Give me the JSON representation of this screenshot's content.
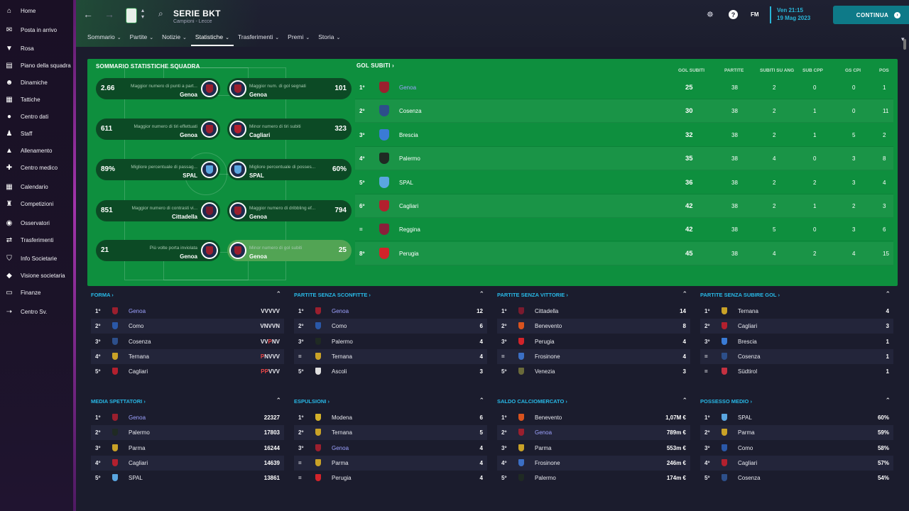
{
  "sidebar": {
    "items": [
      {
        "label": "Home",
        "icon": "home-icon"
      },
      {
        "label": "Posta in arrivo",
        "icon": "inbox-icon"
      },
      {
        "label": "Rosa",
        "icon": "shirt-icon"
      },
      {
        "label": "Piano della squadra",
        "icon": "clipboard-icon"
      },
      {
        "label": "Dinamiche",
        "icon": "people-icon"
      },
      {
        "label": "Tattiche",
        "icon": "tactics-icon"
      },
      {
        "label": "Centro dati",
        "icon": "data-icon"
      },
      {
        "label": "Staff",
        "icon": "staff-icon"
      },
      {
        "label": "Allenamento",
        "icon": "training-icon"
      },
      {
        "label": "Centro medico",
        "icon": "medical-icon"
      },
      {
        "label": "Calendario",
        "icon": "calendar-icon"
      },
      {
        "label": "Competizioni",
        "icon": "trophy-icon"
      },
      {
        "label": "Osservatori",
        "icon": "scout-icon"
      },
      {
        "label": "Trasferimenti",
        "icon": "transfer-icon"
      },
      {
        "label": "Info Societarie",
        "icon": "shield-icon"
      },
      {
        "label": "Visione societaria",
        "icon": "vision-icon"
      },
      {
        "label": "Finanze",
        "icon": "finance-icon"
      },
      {
        "label": "Centro Sv.",
        "icon": "development-icon"
      }
    ]
  },
  "header": {
    "title": "SERIE BKT",
    "subtitle": "Campioni - Lecce",
    "date_line1": "Ven 21:15",
    "date_line2": "19 Mag 2023",
    "fm_label": "FM",
    "continue_label": "CONTINUA",
    "tabs": [
      {
        "label": "Sommario"
      },
      {
        "label": "Partite"
      },
      {
        "label": "Notizie"
      },
      {
        "label": "Statistiche"
      },
      {
        "label": "Trasferimenti"
      },
      {
        "label": "Premi"
      },
      {
        "label": "Storia"
      }
    ]
  },
  "summary": {
    "title": "SOMMARIO STATISTICHE SQUADRA",
    "pills": [
      {
        "value": "2.66",
        "label": "Maggior numero di punti a part...",
        "team": "Genoa",
        "color": "#9b1f2e"
      },
      {
        "value": "101",
        "label": "Maggior num. di gol segnati",
        "team": "Genoa",
        "color": "#9b1f2e"
      },
      {
        "value": "611",
        "label": "Maggior numero di tiri effettuati",
        "team": "Genoa",
        "color": "#9b1f2e"
      },
      {
        "value": "323",
        "label": "Minor numero di tiri subiti",
        "team": "Cagliari",
        "color": "#b3202e"
      },
      {
        "value": "89%",
        "label": "Migliore percentuale di passag...",
        "team": "SPAL",
        "color": "#5aa6e0"
      },
      {
        "value": "60%",
        "label": "Migliore percentuale di posses...",
        "team": "SPAL",
        "color": "#5aa6e0"
      },
      {
        "value": "851",
        "label": "Maggior numero di contrasti vi...",
        "team": "Cittadella",
        "color": "#7a1a2e"
      },
      {
        "value": "794",
        "label": "Maggior numero di dribbling ef...",
        "team": "Genoa",
        "color": "#9b1f2e"
      },
      {
        "value": "21",
        "label": "Più volte porta inviolata",
        "team": "Genoa",
        "color": "#9b1f2e"
      },
      {
        "value": "25",
        "label": "Minor numero di gol subiti",
        "team": "Genoa",
        "color": "#9b1f2e"
      }
    ]
  },
  "goals_conceded": {
    "title": "GOL SUBITI",
    "headers": [
      "GOL SUBITI",
      "PARTITE",
      "SUBITI SU ANG",
      "SUB CPP",
      "GS CPI",
      "POS"
    ],
    "rows": [
      {
        "pos": "1º",
        "team": "Genoa",
        "link": true,
        "color": "#9b1f2e",
        "gs": "25",
        "p": "38",
        "ang": "2",
        "cpp": "0",
        "cpi": "0",
        "rank": "1"
      },
      {
        "pos": "2º",
        "team": "Cosenza",
        "link": false,
        "color": "#2d4f8a",
        "gs": "30",
        "p": "38",
        "ang": "2",
        "cpp": "1",
        "cpi": "0",
        "rank": "11"
      },
      {
        "pos": "3º",
        "team": "Brescia",
        "link": false,
        "color": "#3a7bd5",
        "gs": "32",
        "p": "38",
        "ang": "2",
        "cpp": "1",
        "cpi": "5",
        "rank": "2"
      },
      {
        "pos": "4º",
        "team": "Palermo",
        "link": false,
        "color": "#1f2a23",
        "gs": "35",
        "p": "38",
        "ang": "4",
        "cpp": "0",
        "cpi": "3",
        "rank": "8"
      },
      {
        "pos": "5º",
        "team": "SPAL",
        "link": false,
        "color": "#5aa6e0",
        "gs": "36",
        "p": "38",
        "ang": "2",
        "cpp": "2",
        "cpi": "3",
        "rank": "4"
      },
      {
        "pos": "6º",
        "team": "Cagliari",
        "link": false,
        "color": "#b3202e",
        "gs": "42",
        "p": "38",
        "ang": "2",
        "cpp": "1",
        "cpi": "2",
        "rank": "3"
      },
      {
        "pos": "=",
        "team": "Reggina",
        "link": false,
        "color": "#8a1f3a",
        "gs": "42",
        "p": "38",
        "ang": "5",
        "cpp": "0",
        "cpi": "3",
        "rank": "6"
      },
      {
        "pos": "8º",
        "team": "Perugia",
        "link": false,
        "color": "#d2232a",
        "gs": "45",
        "p": "38",
        "ang": "4",
        "cpp": "2",
        "cpi": "4",
        "rank": "15"
      }
    ]
  },
  "lists": [
    {
      "title": "FORMA",
      "form": true,
      "rows": [
        {
          "pos": "1º",
          "team": "Genoa",
          "link": true,
          "color": "#9b1f2e",
          "value": "VVVVV"
        },
        {
          "pos": "2º",
          "team": "Como",
          "link": false,
          "color": "#2a58a8",
          "value": "VNVVN"
        },
        {
          "pos": "3º",
          "team": "Cosenza",
          "link": false,
          "color": "#2d4f8a",
          "value": "VVPNV"
        },
        {
          "pos": "4º",
          "team": "Ternana",
          "link": false,
          "color": "#c9a227",
          "value": "PNVVV"
        },
        {
          "pos": "5º",
          "team": "Cagliari",
          "link": false,
          "color": "#b3202e",
          "value": "PPVVV"
        }
      ]
    },
    {
      "title": "PARTITE SENZA SCONFITTE",
      "form": false,
      "rows": [
        {
          "pos": "1º",
          "team": "Genoa",
          "link": true,
          "color": "#9b1f2e",
          "value": "12"
        },
        {
          "pos": "2º",
          "team": "Como",
          "link": false,
          "color": "#2a58a8",
          "value": "6"
        },
        {
          "pos": "3º",
          "team": "Palermo",
          "link": false,
          "color": "#1f2a23",
          "value": "4"
        },
        {
          "pos": "=",
          "team": "Ternana",
          "link": false,
          "color": "#c9a227",
          "value": "4"
        },
        {
          "pos": "5º",
          "team": "Ascoli",
          "link": false,
          "color": "#e0e0e0",
          "value": "3"
        }
      ]
    },
    {
      "title": "PARTITE SENZA VITTORIE",
      "form": false,
      "rows": [
        {
          "pos": "1º",
          "team": "Cittadella",
          "link": false,
          "color": "#7a1a2e",
          "value": "14"
        },
        {
          "pos": "2º",
          "team": "Benevento",
          "link": false,
          "color": "#d9531e",
          "value": "8"
        },
        {
          "pos": "3º",
          "team": "Perugia",
          "link": false,
          "color": "#d2232a",
          "value": "4"
        },
        {
          "pos": "=",
          "team": "Frosinone",
          "link": false,
          "color": "#3b6fc4",
          "value": "4"
        },
        {
          "pos": "5º",
          "team": "Venezia",
          "link": false,
          "color": "#6a6a3a",
          "value": "3"
        }
      ]
    },
    {
      "title": "PARTITE SENZA SUBIRE GOL",
      "form": false,
      "rows": [
        {
          "pos": "1º",
          "team": "Ternana",
          "link": false,
          "color": "#c9a227",
          "value": "4"
        },
        {
          "pos": "2º",
          "team": "Cagliari",
          "link": false,
          "color": "#b3202e",
          "value": "3"
        },
        {
          "pos": "3º",
          "team": "Brescia",
          "link": false,
          "color": "#3a7bd5",
          "value": "1"
        },
        {
          "pos": "=",
          "team": "Cosenza",
          "link": false,
          "color": "#2d4f8a",
          "value": "1"
        },
        {
          "pos": "=",
          "team": "Südtirol",
          "link": false,
          "color": "#c43040",
          "value": "1"
        }
      ]
    },
    {
      "title": "MEDIA SPETTATORI",
      "form": false,
      "rows": [
        {
          "pos": "1º",
          "team": "Genoa",
          "link": true,
          "color": "#9b1f2e",
          "value": "22327"
        },
        {
          "pos": "2º",
          "team": "Palermo",
          "link": false,
          "color": "#1f2a23",
          "value": "17803"
        },
        {
          "pos": "3º",
          "team": "Parma",
          "link": false,
          "color": "#c9a227",
          "value": "16244"
        },
        {
          "pos": "4º",
          "team": "Cagliari",
          "link": false,
          "color": "#b3202e",
          "value": "14639"
        },
        {
          "pos": "5º",
          "team": "SPAL",
          "link": false,
          "color": "#5aa6e0",
          "value": "13861"
        }
      ]
    },
    {
      "title": "ESPULSIONI",
      "form": false,
      "rows": [
        {
          "pos": "1º",
          "team": "Modena",
          "link": false,
          "color": "#d4b12a",
          "value": "6"
        },
        {
          "pos": "2º",
          "team": "Ternana",
          "link": false,
          "color": "#c9a227",
          "value": "5"
        },
        {
          "pos": "3º",
          "team": "Genoa",
          "link": true,
          "color": "#9b1f2e",
          "value": "4"
        },
        {
          "pos": "=",
          "team": "Parma",
          "link": false,
          "color": "#c9a227",
          "value": "4"
        },
        {
          "pos": "=",
          "team": "Perugia",
          "link": false,
          "color": "#d2232a",
          "value": "4"
        }
      ]
    },
    {
      "title": "SALDO CALCIOMERCATO",
      "form": false,
      "rows": [
        {
          "pos": "1º",
          "team": "Benevento",
          "link": false,
          "color": "#d9531e",
          "value": "1,07M €"
        },
        {
          "pos": "2º",
          "team": "Genoa",
          "link": true,
          "color": "#9b1f2e",
          "value": "789m €"
        },
        {
          "pos": "3º",
          "team": "Parma",
          "link": false,
          "color": "#c9a227",
          "value": "553m €"
        },
        {
          "pos": "4º",
          "team": "Frosinone",
          "link": false,
          "color": "#3b6fc4",
          "value": "246m €"
        },
        {
          "pos": "5º",
          "team": "Palermo",
          "link": false,
          "color": "#1f2a23",
          "value": "174m €"
        }
      ]
    },
    {
      "title": "POSSESSO MEDIO",
      "form": false,
      "rows": [
        {
          "pos": "1º",
          "team": "SPAL",
          "link": false,
          "color": "#5aa6e0",
          "value": "60%"
        },
        {
          "pos": "2º",
          "team": "Parma",
          "link": false,
          "color": "#c9a227",
          "value": "59%"
        },
        {
          "pos": "3º",
          "team": "Como",
          "link": false,
          "color": "#2a58a8",
          "value": "58%"
        },
        {
          "pos": "4º",
          "team": "Cagliari",
          "link": false,
          "color": "#b3202e",
          "value": "57%"
        },
        {
          "pos": "5º",
          "team": "Cosenza",
          "link": false,
          "color": "#2d4f8a",
          "value": "54%"
        }
      ]
    }
  ]
}
